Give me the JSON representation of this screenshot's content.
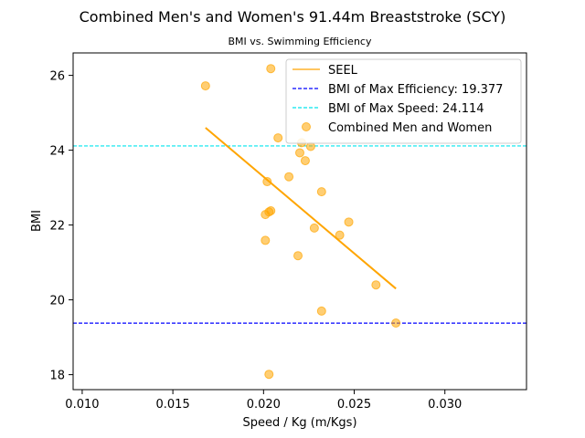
{
  "chart_data": {
    "type": "scatter",
    "title": "Combined Men's and Women's 91.44m Breaststroke (SCY)",
    "subtitle": "BMI vs. Swimming Efficiency",
    "xlabel": "Speed / Kg (m/Kgs)",
    "ylabel": "BMI",
    "xlim": [
      0.0095,
      0.0345
    ],
    "ylim": [
      17.6,
      26.6
    ],
    "xticks": [
      0.01,
      0.015,
      0.02,
      0.025,
      0.03
    ],
    "xtick_labels": [
      "0.010",
      "0.015",
      "0.020",
      "0.025",
      "0.030"
    ],
    "yticks": [
      18,
      20,
      22,
      24,
      26
    ],
    "ytick_labels": [
      "18",
      "20",
      "22",
      "24",
      "26"
    ],
    "grid": false,
    "legend_position": "top-right",
    "series": [
      {
        "name": "Combined Men and Women",
        "kind": "scatter",
        "color": "#ffa500",
        "points": [
          {
            "x": 0.0168,
            "y": 25.72
          },
          {
            "x": 0.0204,
            "y": 26.18
          },
          {
            "x": 0.0208,
            "y": 24.33
          },
          {
            "x": 0.0221,
            "y": 24.2
          },
          {
            "x": 0.0226,
            "y": 24.1
          },
          {
            "x": 0.022,
            "y": 23.93
          },
          {
            "x": 0.0223,
            "y": 23.72
          },
          {
            "x": 0.0214,
            "y": 23.29
          },
          {
            "x": 0.0202,
            "y": 23.16
          },
          {
            "x": 0.0232,
            "y": 22.89
          },
          {
            "x": 0.0204,
            "y": 22.38
          },
          {
            "x": 0.0203,
            "y": 22.35
          },
          {
            "x": 0.0201,
            "y": 22.28
          },
          {
            "x": 0.0247,
            "y": 22.08
          },
          {
            "x": 0.0228,
            "y": 21.92
          },
          {
            "x": 0.0242,
            "y": 21.73
          },
          {
            "x": 0.0201,
            "y": 21.59
          },
          {
            "x": 0.0219,
            "y": 21.18
          },
          {
            "x": 0.0262,
            "y": 20.4
          },
          {
            "x": 0.0232,
            "y": 19.7
          },
          {
            "x": 0.0273,
            "y": 19.38
          },
          {
            "x": 0.0203,
            "y": 18.01
          }
        ]
      },
      {
        "name": "SEEL",
        "kind": "line",
        "color": "#ffa500",
        "x": [
          0.0168,
          0.0273
        ],
        "y": [
          24.6,
          20.3
        ]
      },
      {
        "name": "BMI of Max Efficiency: 19.377",
        "kind": "hline",
        "color": "#0000ff",
        "y": 19.377
      },
      {
        "name": "BMI of Max Speed: 24.114",
        "kind": "hline",
        "color": "#00e5ee",
        "y": 24.114
      }
    ],
    "legend": [
      {
        "label": "SEEL",
        "style": "line",
        "color": "#ffa500"
      },
      {
        "label": "BMI of Max Efficiency: 19.377",
        "style": "dashed",
        "color": "#0000ff"
      },
      {
        "label": "BMI of Max Speed: 24.114",
        "style": "dashed",
        "color": "#00e5ee"
      },
      {
        "label": "Combined Men and Women",
        "style": "marker",
        "color": "#ffa500"
      }
    ]
  }
}
